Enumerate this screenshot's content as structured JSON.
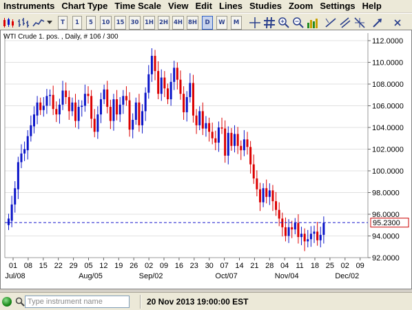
{
  "menu": [
    "Instruments",
    "Chart Type",
    "Time Scale",
    "View",
    "Edit",
    "Lines",
    "Studies",
    "Zoom",
    "Settings",
    "Help"
  ],
  "toolbar": {
    "timeframes": [
      "T",
      "1",
      "5",
      "10",
      "15",
      "30",
      "1H",
      "2H",
      "4H",
      "8H",
      "D",
      "W",
      "M"
    ],
    "active_timeframe": "D"
  },
  "chart": {
    "header": "WTI Crude 1. pos. , Daily, # 106 / 300",
    "current_price_label": "95.2300",
    "colors": {
      "up": "#0a14c8",
      "down": "#dc0000",
      "price_line": "#1a1acc",
      "grid": "#e0e0e0"
    }
  },
  "chart_data": {
    "type": "candlestick",
    "current_price": 95.23,
    "ylim": [
      92,
      112.7
    ],
    "y_ticks": [
      "92.0000",
      "94.0000",
      "96.0000",
      "98.0000",
      "100.0000",
      "102.0000",
      "104.0000",
      "106.0000",
      "108.0000",
      "110.0000",
      "112.0000"
    ],
    "x_ticks": [
      "01",
      "08",
      "15",
      "22",
      "29",
      "05",
      "12",
      "19",
      "26",
      "02",
      "09",
      "16",
      "23",
      "30",
      "07",
      "14",
      "21",
      "28",
      "04",
      "11",
      "18",
      "25",
      "02",
      "09"
    ],
    "month_labels": [
      "Jul/08",
      "Aug/05",
      "Sep/02",
      "Oct/07",
      "Nov/04",
      "Dec/02"
    ],
    "closes": [
      95.6,
      96.9,
      98.4,
      100.8,
      101.6,
      102.0,
      103.2,
      104.2,
      105.2,
      106.3,
      105.6,
      106.0,
      106.9,
      107.0,
      105.7,
      105.2,
      106.1,
      107.4,
      106.8,
      105.5,
      106.3,
      104.6,
      105.9,
      106.0,
      107.1,
      106.9,
      104.8,
      103.6,
      105.2,
      106.6,
      107.5,
      105.9,
      104.6,
      106.6,
      105.2,
      106.1,
      106.9,
      106.5,
      103.8,
      104.7,
      106.3,
      104.2,
      105.5,
      107.2,
      108.9,
      110.6,
      109.2,
      107.1,
      108.6,
      107.6,
      106.6,
      108.2,
      109.5,
      108.4,
      107.1,
      105.4,
      106.8,
      108.1,
      105.1,
      104.2,
      105.5,
      103.9,
      104.4,
      103.6,
      103.0,
      102.6,
      104.0,
      103.9,
      101.4,
      103.5,
      102.3,
      103.4,
      102.3,
      101.9,
      102.9,
      102.2,
      100.6,
      99.3,
      98.3,
      97.1,
      98.4,
      97.6,
      98.2,
      97.2,
      96.4,
      95.6,
      94.8,
      94.0,
      94.8,
      94.6,
      95.2,
      93.9,
      94.2,
      93.5,
      93.7,
      94.2,
      94.4,
      93.6,
      94.1,
      95.2
    ],
    "opens": [
      95.0,
      95.4,
      96.9,
      98.3,
      100.8,
      101.6,
      101.9,
      103.2,
      104.1,
      105.1,
      106.3,
      105.6,
      106.0,
      106.9,
      107.0,
      105.7,
      105.2,
      106.1,
      107.4,
      106.8,
      105.5,
      106.3,
      104.6,
      105.9,
      106.0,
      107.1,
      106.9,
      104.8,
      103.6,
      105.2,
      106.6,
      107.5,
      105.9,
      104.6,
      106.6,
      105.2,
      106.1,
      106.9,
      106.5,
      103.8,
      104.7,
      106.3,
      104.2,
      105.5,
      107.2,
      108.9,
      110.6,
      109.2,
      107.1,
      108.6,
      107.6,
      106.6,
      108.2,
      109.5,
      108.4,
      107.1,
      105.4,
      106.8,
      108.1,
      105.1,
      104.2,
      105.5,
      103.9,
      104.4,
      103.6,
      103.0,
      102.6,
      104.0,
      103.9,
      101.4,
      103.5,
      102.3,
      103.4,
      102.3,
      101.9,
      102.9,
      102.2,
      100.6,
      99.3,
      98.3,
      97.1,
      98.4,
      97.6,
      98.2,
      97.2,
      96.4,
      95.6,
      94.8,
      94.0,
      94.8,
      94.6,
      95.2,
      93.9,
      94.2,
      93.5,
      93.7,
      94.2,
      94.4,
      93.6,
      94.1
    ]
  },
  "status": {
    "search_placeholder": "Type instrument name",
    "datetime": "20 Nov 2013 19:00:00 EST"
  }
}
